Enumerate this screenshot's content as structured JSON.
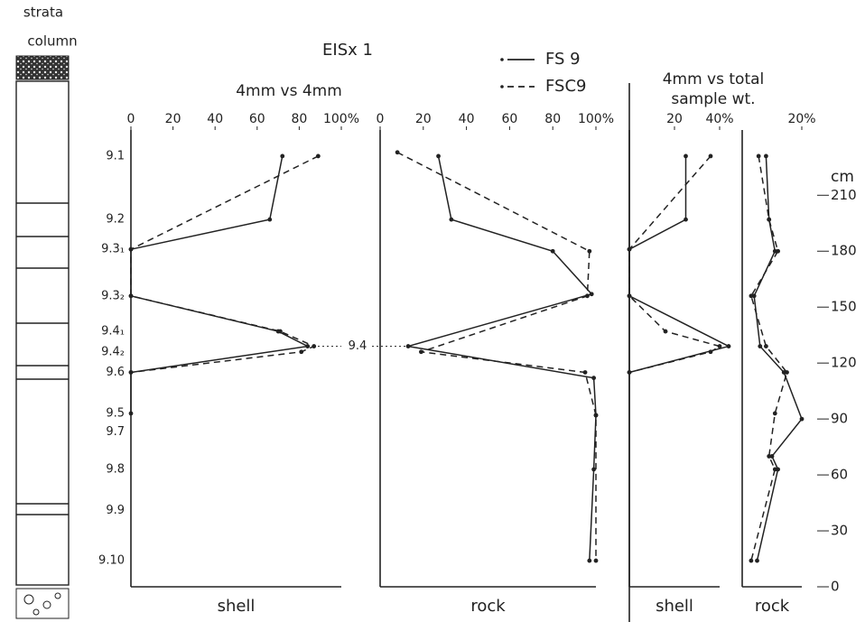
{
  "header": {
    "strata": [
      "strata",
      "column"
    ],
    "site": "EISx 1",
    "left_title": "4mm vs 4mm",
    "right_title": [
      "4mm vs total",
      "sample wt."
    ],
    "link_label": "9.4"
  },
  "samples": [
    {
      "label": "9.1",
      "depth": 231
    },
    {
      "label": "9.2",
      "depth": 197
    },
    {
      "label": "9.3₁",
      "depth": 181
    },
    {
      "label": "9.3₂",
      "depth": 156
    },
    {
      "label": "9.4₁",
      "depth": 137
    },
    {
      "label": "9.4₂",
      "depth": 126
    },
    {
      "label": "9.6",
      "depth": 115
    },
    {
      "label": "9.5",
      "depth": 93
    },
    {
      "label": "9.7",
      "depth": 83
    },
    {
      "label": "9.8",
      "depth": 63
    },
    {
      "label": "9.9",
      "depth": 41
    },
    {
      "label": "9.10",
      "depth": 14
    }
  ],
  "chart_data": [
    {
      "type": "line",
      "xlabel": "shell",
      "xlim": [
        0,
        100
      ],
      "ylim": [
        0,
        245
      ],
      "xticks": [
        0,
        20,
        40,
        60,
        80,
        {
          "value": 100,
          "label": "100%"
        }
      ],
      "series": [
        {
          "name": "FS 9",
          "color": "#222",
          "dash": "solid",
          "values": [
            72,
            66,
            0,
            0,
            70,
            84,
            0,
            0
          ],
          "depth": [
            231,
            197,
            181,
            156,
            137,
            129,
            115,
            93
          ]
        },
        {
          "name": "FSC9",
          "color": "#222",
          "dash": "dashed",
          "values": [
            89,
            0,
            0,
            71,
            87,
            81,
            0
          ],
          "depth": [
            231,
            181,
            156,
            137,
            129,
            126,
            115
          ]
        }
      ]
    },
    {
      "type": "line",
      "xlabel": "rock",
      "xlim": [
        0,
        100
      ],
      "ylim": [
        0,
        245
      ],
      "xticks": [
        0,
        20,
        40,
        60,
        80,
        {
          "value": 100,
          "label": "100%"
        }
      ],
      "series": [
        {
          "name": "FS 9",
          "color": "#222",
          "dash": "solid",
          "values": [
            27,
            33,
            80,
            98,
            13,
            99,
            100,
            99,
            97
          ],
          "depth": [
            231,
            197,
            180,
            157,
            129,
            112,
            92,
            63,
            14
          ]
        },
        {
          "name": "FSC9",
          "color": "#222",
          "dash": "dashed",
          "values": [
            8,
            97,
            96,
            19,
            95,
            100,
            100
          ],
          "depth": [
            233,
            180,
            156,
            126,
            115,
            92,
            14
          ]
        }
      ]
    },
    {
      "type": "line",
      "xlabel": "shell",
      "xlim": [
        0,
        40
      ],
      "ylim": [
        0,
        245
      ],
      "xticks": [
        20,
        {
          "value": 40,
          "label": "40%"
        }
      ],
      "series": [
        {
          "name": "FS 9",
          "color": "#222",
          "dash": "solid",
          "values": [
            25,
            25,
            0,
            0,
            44,
            0
          ],
          "depth": [
            231,
            197,
            181,
            156,
            129,
            115
          ]
        },
        {
          "name": "FSC9",
          "color": "#222",
          "dash": "dashed",
          "values": [
            36,
            0,
            0,
            16,
            40,
            36,
            0
          ],
          "depth": [
            231,
            181,
            156,
            137,
            129,
            126,
            115
          ]
        }
      ]
    },
    {
      "type": "line",
      "xlabel": "rock",
      "ylabel": "cm",
      "xlim": [
        0,
        20
      ],
      "ylim": [
        0,
        245
      ],
      "xticks": [
        {
          "value": 20,
          "label": "20%"
        }
      ],
      "yticks": [
        0,
        30,
        60,
        90,
        120,
        150,
        180,
        210
      ],
      "series": [
        {
          "name": "FS 9",
          "color": "#222",
          "dash": "solid",
          "values": [
            8,
            9,
            11,
            4,
            6,
            14,
            20,
            10,
            12,
            5
          ],
          "depth": [
            231,
            197,
            180,
            156,
            129,
            115,
            90,
            70,
            63,
            14
          ]
        },
        {
          "name": "FSC9",
          "color": "#222",
          "dash": "dashed",
          "values": [
            5.5,
            9,
            12,
            3,
            8,
            15,
            11,
            9,
            11,
            3
          ],
          "depth": [
            231,
            197,
            180,
            156,
            129,
            115,
            93,
            70,
            63,
            14
          ]
        }
      ]
    }
  ]
}
